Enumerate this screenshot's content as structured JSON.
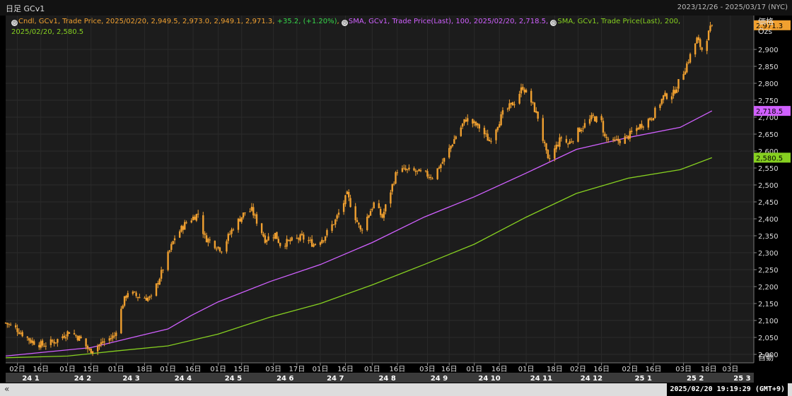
{
  "window": {
    "title": "日足 GCv1",
    "date_range": "2023/12/26 - 2025/03/17 (NYC)"
  },
  "legend": {
    "candle": {
      "prefix": "Cndl, GCv1, Trade Price, 2025/02/20, 2,949.5, 2,973.0, 2,949.1, 2,971.3, ",
      "change": "+35.2, (+1.20%)",
      "color": "#f0a030"
    },
    "sma100": {
      "text": "SMA, GCv1, Trade Price(Last), 100, 2025/02/20, 2,718.5,",
      "color": "#d060ff"
    },
    "sma200": {
      "text": "SMA, GCv1, Trade Price(Last), 200,",
      "text2": "2025/02/20, 2,580.5",
      "color": "#86d020"
    }
  },
  "axis": {
    "price_unit": "価格",
    "currency_unit": "Ozs",
    "auto_label": "自動"
  },
  "status": {
    "timestamp": "2025/02/20 19:19:29 (GMT+9)",
    "back_icon": "double-chevron-left-icon"
  },
  "chart_data": {
    "type": "candlestick",
    "title": "GCv1",
    "ylim": [
      1975,
      3000
    ],
    "y_ticks": [
      2000,
      2050,
      2100,
      2150,
      2200,
      2250,
      2300,
      2350,
      2400,
      2450,
      2500,
      2550,
      2600,
      2650,
      2700,
      2750,
      2800,
      2850,
      2900
    ],
    "y_tick_labels": [
      "2,000",
      "2,050",
      "2,100",
      "2,150",
      "2,200",
      "2,250",
      "2,300",
      "2,350",
      "2,400",
      "2,450",
      "2,500",
      "2,550",
      "2,600",
      "2,650",
      "2,700",
      "2,750",
      "2,800",
      "2,850",
      "2,900"
    ],
    "x_range": [
      "2023-12-26",
      "2025-03-17"
    ],
    "day_ticks": [
      {
        "date": "2024-01-02",
        "label": "02日"
      },
      {
        "date": "2024-01-16",
        "label": "16日"
      },
      {
        "date": "2024-02-01",
        "label": "01日"
      },
      {
        "date": "2024-02-15",
        "label": "15日"
      },
      {
        "date": "2024-03-01",
        "label": "01日"
      },
      {
        "date": "2024-03-18",
        "label": "18日"
      },
      {
        "date": "2024-04-01",
        "label": "01日"
      },
      {
        "date": "2024-04-16",
        "label": "16日"
      },
      {
        "date": "2024-05-01",
        "label": "01日"
      },
      {
        "date": "2024-05-15",
        "label": "15日"
      },
      {
        "date": "2024-06-03",
        "label": "03日"
      },
      {
        "date": "2024-06-17",
        "label": "17日"
      },
      {
        "date": "2024-07-01",
        "label": "01日"
      },
      {
        "date": "2024-07-16",
        "label": "16日"
      },
      {
        "date": "2024-08-01",
        "label": "01日"
      },
      {
        "date": "2024-08-16",
        "label": "16日"
      },
      {
        "date": "2024-09-03",
        "label": "03日"
      },
      {
        "date": "2024-09-16",
        "label": "16日"
      },
      {
        "date": "2024-10-01",
        "label": "01日"
      },
      {
        "date": "2024-10-16",
        "label": "16日"
      },
      {
        "date": "2024-11-01",
        "label": "01日"
      },
      {
        "date": "2024-11-18",
        "label": "18日"
      },
      {
        "date": "2024-12-02",
        "label": "02日"
      },
      {
        "date": "2024-12-16",
        "label": "16日"
      },
      {
        "date": "2025-01-02",
        "label": "02日"
      },
      {
        "date": "2025-01-16",
        "label": "16日"
      },
      {
        "date": "2025-02-03",
        "label": "03日"
      },
      {
        "date": "2025-02-18",
        "label": "18日"
      },
      {
        "date": "2025-03-03",
        "label": "03日"
      }
    ],
    "month_ticks": [
      {
        "date": "2024-01-10",
        "label": "24 1"
      },
      {
        "date": "2024-02-10",
        "label": "24 2"
      },
      {
        "date": "2024-03-10",
        "label": "24 3"
      },
      {
        "date": "2024-04-10",
        "label": "24 4"
      },
      {
        "date": "2024-05-10",
        "label": "24 5"
      },
      {
        "date": "2024-06-10",
        "label": "24 6"
      },
      {
        "date": "2024-07-10",
        "label": "24 7"
      },
      {
        "date": "2024-08-10",
        "label": "24 8"
      },
      {
        "date": "2024-09-10",
        "label": "24 9"
      },
      {
        "date": "2024-10-10",
        "label": "24 10"
      },
      {
        "date": "2024-11-10",
        "label": "24 11"
      },
      {
        "date": "2024-12-10",
        "label": "24 12"
      },
      {
        "date": "2025-01-10",
        "label": "25 1"
      },
      {
        "date": "2025-02-10",
        "label": "25 2"
      },
      {
        "date": "2025-03-10",
        "label": "25 3"
      }
    ],
    "close_keypoints": [
      [
        "2023-12-26",
        2093
      ],
      [
        "2024-01-02",
        2073
      ],
      [
        "2024-01-10",
        2040
      ],
      [
        "2024-01-17",
        2027
      ],
      [
        "2024-01-25",
        2040
      ],
      [
        "2024-02-02",
        2068
      ],
      [
        "2024-02-09",
        2045
      ],
      [
        "2024-02-14",
        2010
      ],
      [
        "2024-02-22",
        2035
      ],
      [
        "2024-02-29",
        2055
      ],
      [
        "2024-03-05",
        2150
      ],
      [
        "2024-03-08",
        2185
      ],
      [
        "2024-03-14",
        2170
      ],
      [
        "2024-03-22",
        2165
      ],
      [
        "2024-03-28",
        2240
      ],
      [
        "2024-04-05",
        2345
      ],
      [
        "2024-04-12",
        2390
      ],
      [
        "2024-04-19",
        2415
      ],
      [
        "2024-04-23",
        2345
      ],
      [
        "2024-05-03",
        2310
      ],
      [
        "2024-05-10",
        2375
      ],
      [
        "2024-05-17",
        2420
      ],
      [
        "2024-05-21",
        2425
      ],
      [
        "2024-05-29",
        2340
      ],
      [
        "2024-06-04",
        2355
      ],
      [
        "2024-06-07",
        2325
      ],
      [
        "2024-06-14",
        2335
      ],
      [
        "2024-06-20",
        2345
      ],
      [
        "2024-06-27",
        2325
      ],
      [
        "2024-07-03",
        2345
      ],
      [
        "2024-07-10",
        2395
      ],
      [
        "2024-07-17",
        2470
      ],
      [
        "2024-07-25",
        2365
      ],
      [
        "2024-08-02",
        2445
      ],
      [
        "2024-08-07",
        2405
      ],
      [
        "2024-08-16",
        2545
      ],
      [
        "2024-08-26",
        2540
      ],
      [
        "2024-09-06",
        2525
      ],
      [
        "2024-09-13",
        2575
      ],
      [
        "2024-09-20",
        2645
      ],
      [
        "2024-09-26",
        2695
      ],
      [
        "2024-10-04",
        2670
      ],
      [
        "2024-10-10",
        2630
      ],
      [
        "2024-10-18",
        2710
      ],
      [
        "2024-10-25",
        2745
      ],
      [
        "2024-10-30",
        2790
      ],
      [
        "2024-11-04",
        2745
      ],
      [
        "2024-11-08",
        2700
      ],
      [
        "2024-11-14",
        2570
      ],
      [
        "2024-11-22",
        2640
      ],
      [
        "2024-11-26",
        2620
      ],
      [
        "2024-12-03",
        2665
      ],
      [
        "2024-12-11",
        2700
      ],
      [
        "2024-12-16",
        2685
      ],
      [
        "2024-12-18",
        2640
      ],
      [
        "2024-12-23",
        2625
      ],
      [
        "2024-12-31",
        2640
      ],
      [
        "2025-01-08",
        2675
      ],
      [
        "2025-01-15",
        2700
      ],
      [
        "2025-01-22",
        2760
      ],
      [
        "2025-01-28",
        2770
      ],
      [
        "2025-02-04",
        2845
      ],
      [
        "2025-02-11",
        2930
      ],
      [
        "2025-02-14",
        2900
      ],
      [
        "2025-02-20",
        2971.3
      ]
    ],
    "sma100_keypoints": [
      [
        "2023-12-26",
        1995
      ],
      [
        "2024-01-15",
        2005
      ],
      [
        "2024-02-15",
        2020
      ],
      [
        "2024-03-15",
        2055
      ],
      [
        "2024-04-01",
        2075
      ],
      [
        "2024-04-15",
        2115
      ],
      [
        "2024-05-01",
        2155
      ],
      [
        "2024-06-01",
        2215
      ],
      [
        "2024-07-01",
        2265
      ],
      [
        "2024-08-01",
        2330
      ],
      [
        "2024-09-01",
        2405
      ],
      [
        "2024-10-01",
        2465
      ],
      [
        "2024-11-01",
        2535
      ],
      [
        "2024-12-01",
        2605
      ],
      [
        "2025-01-01",
        2640
      ],
      [
        "2025-02-01",
        2670
      ],
      [
        "2025-02-20",
        2718.5
      ]
    ],
    "sma200_keypoints": [
      [
        "2023-12-26",
        1990
      ],
      [
        "2024-02-01",
        1995
      ],
      [
        "2024-03-01",
        2010
      ],
      [
        "2024-04-01",
        2025
      ],
      [
        "2024-05-01",
        2060
      ],
      [
        "2024-06-01",
        2110
      ],
      [
        "2024-07-01",
        2150
      ],
      [
        "2024-08-01",
        2205
      ],
      [
        "2024-09-01",
        2265
      ],
      [
        "2024-10-01",
        2325
      ],
      [
        "2024-11-01",
        2405
      ],
      [
        "2024-12-01",
        2475
      ],
      [
        "2025-01-01",
        2520
      ],
      [
        "2025-02-01",
        2545
      ],
      [
        "2025-02-20",
        2580.5
      ]
    ],
    "price_markers": [
      {
        "value": 2971.3,
        "label": "2,971.3",
        "color": "#f0a030"
      },
      {
        "value": 2718.5,
        "label": "2,718.5",
        "color": "#d060ff"
      },
      {
        "value": 2580.5,
        "label": "2,580.5",
        "color": "#86d020"
      }
    ],
    "grid": true
  }
}
